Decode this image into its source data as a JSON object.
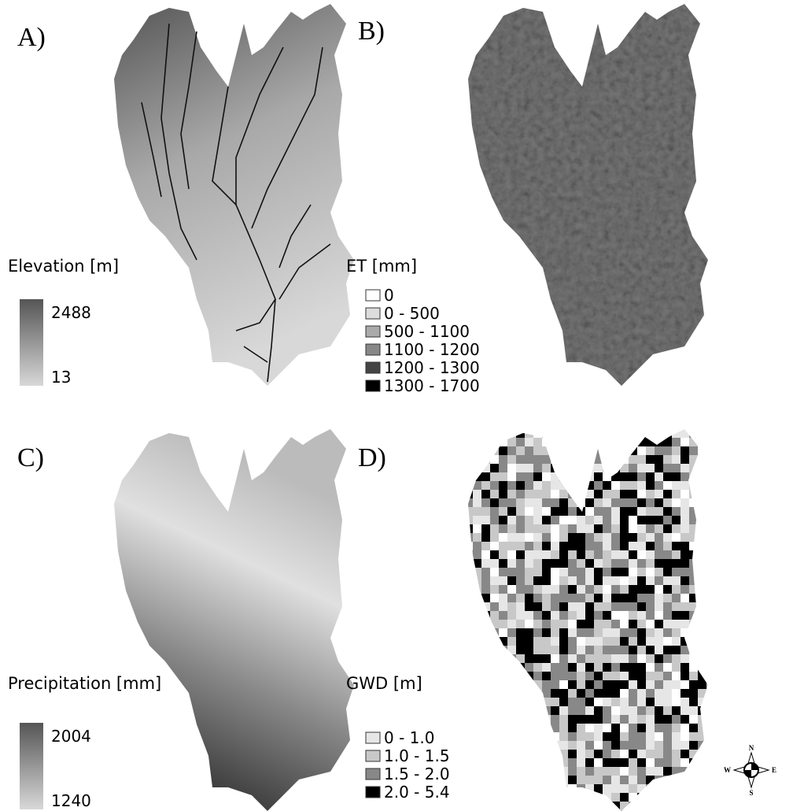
{
  "panels": [
    {
      "label": "A)",
      "legend_title": "Elevation [m]",
      "ramp": {
        "max": "2488",
        "min": "13"
      }
    },
    {
      "label": "B)",
      "legend_title": "ET [mm]",
      "classes": [
        "0",
        "0 - 500",
        "500 - 1100",
        "1100 - 1200",
        "1200 - 1300",
        "1300 - 1700"
      ]
    },
    {
      "label": "C)",
      "legend_title": "Precipitation [mm]",
      "ramp": {
        "max": "2004",
        "min": "1240"
      }
    },
    {
      "label": "D)",
      "legend_title": "GWD [m]",
      "classes": [
        "0 - 1.0",
        "1.0 - 1.5",
        "1.5 - 2.0",
        "2.0 - 5.4"
      ]
    }
  ],
  "compass": {
    "n": "N",
    "s": "S",
    "w": "W",
    "e": "E"
  }
}
